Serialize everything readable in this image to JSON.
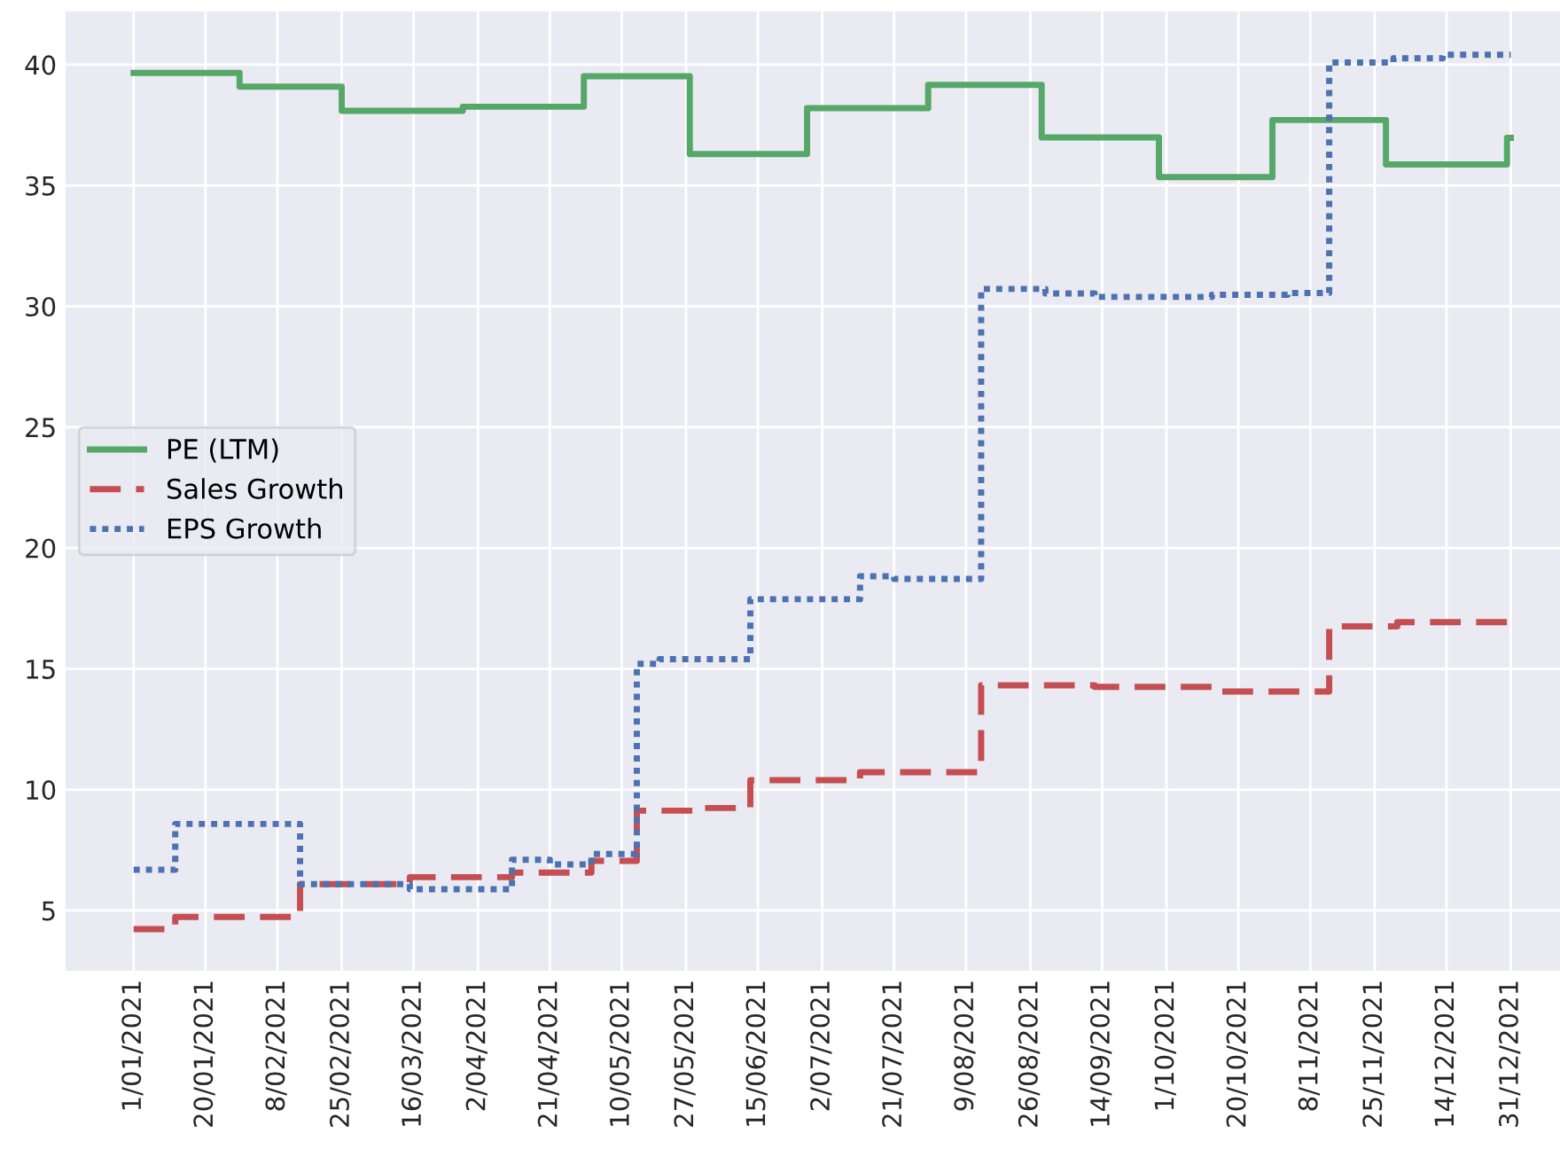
{
  "chart_data": {
    "type": "step",
    "xlim": [
      "2020-12-14",
      "2022-01-13"
    ],
    "ylim": [
      2.5,
      42.2
    ],
    "xticks": [
      {
        "value": "2021-01-01",
        "label": "1/01/2021"
      },
      {
        "value": "2021-01-20",
        "label": "20/01/2021"
      },
      {
        "value": "2021-02-08",
        "label": "8/02/2021"
      },
      {
        "value": "2021-02-25",
        "label": "25/02/2021"
      },
      {
        "value": "2021-03-16",
        "label": "16/03/2021"
      },
      {
        "value": "2021-04-02",
        "label": "2/04/2021"
      },
      {
        "value": "2021-04-21",
        "label": "21/04/2021"
      },
      {
        "value": "2021-05-10",
        "label": "10/05/2021"
      },
      {
        "value": "2021-05-27",
        "label": "27/05/2021"
      },
      {
        "value": "2021-06-15",
        "label": "15/06/2021"
      },
      {
        "value": "2021-07-02",
        "label": "2/07/2021"
      },
      {
        "value": "2021-07-21",
        "label": "21/07/2021"
      },
      {
        "value": "2021-08-09",
        "label": "9/08/2021"
      },
      {
        "value": "2021-08-26",
        "label": "26/08/2021"
      },
      {
        "value": "2021-09-14",
        "label": "14/09/2021"
      },
      {
        "value": "2021-10-01",
        "label": "1/10/2021"
      },
      {
        "value": "2021-10-20",
        "label": "20/10/2021"
      },
      {
        "value": "2021-11-08",
        "label": "8/11/2021"
      },
      {
        "value": "2021-11-25",
        "label": "25/11/2021"
      },
      {
        "value": "2021-12-14",
        "label": "14/12/2021"
      },
      {
        "value": "2021-12-31",
        "label": "31/12/2021"
      }
    ],
    "yticks": [
      5,
      10,
      15,
      20,
      25,
      30,
      35,
      40
    ],
    "grid": true,
    "legend": "center left",
    "series": [
      {
        "name": "PE (LTM)",
        "color": "#55a868",
        "line_style": "solid",
        "x": [
          "2021-01-01",
          "2021-01-29",
          "2021-02-25",
          "2021-03-29",
          "2021-04-30",
          "2021-05-28",
          "2021-06-28",
          "2021-07-30",
          "2021-08-29",
          "2021-09-29",
          "2021-10-29",
          "2021-11-28",
          "2021-12-30",
          "2021-12-31"
        ],
        "values": [
          39.66,
          39.09,
          38.09,
          38.26,
          39.52,
          36.3,
          38.2,
          39.16,
          36.99,
          35.35,
          37.71,
          35.87,
          36.97,
          36.97
        ]
      },
      {
        "name": "Sales Growth",
        "color": "#c44e52",
        "line_style": "dashed",
        "x": [
          "2021-01-01",
          "2021-01-12",
          "2021-02-14",
          "2021-03-15",
          "2021-04-11",
          "2021-05-02",
          "2021-05-14",
          "2021-05-31",
          "2021-06-13",
          "2021-07-12",
          "2021-08-13",
          "2021-09-12",
          "2021-10-13",
          "2021-11-13",
          "2021-12-01",
          "2021-12-31"
        ],
        "values": [
          4.23,
          4.73,
          6.09,
          6.38,
          6.57,
          7.05,
          9.13,
          9.24,
          10.39,
          10.72,
          14.32,
          14.25,
          14.06,
          16.76,
          16.93,
          16.93
        ]
      },
      {
        "name": "EPS Growth",
        "color": "#4c72b0",
        "line_style": "dotted",
        "x": [
          "2021-01-01",
          "2021-01-12",
          "2021-02-14",
          "2021-03-15",
          "2021-04-11",
          "2021-04-21",
          "2021-05-02",
          "2021-05-14",
          "2021-05-20",
          "2021-06-13",
          "2021-07-12",
          "2021-07-21",
          "2021-08-13",
          "2021-08-30",
          "2021-09-12",
          "2021-10-13",
          "2021-11-02",
          "2021-11-13",
          "2021-11-30",
          "2021-12-13",
          "2021-12-31"
        ],
        "values": [
          6.69,
          8.58,
          6.09,
          5.88,
          7.1,
          6.91,
          7.34,
          15.21,
          15.4,
          17.88,
          18.83,
          18.72,
          30.72,
          30.53,
          30.39,
          30.48,
          30.55,
          40.09,
          40.26,
          40.41,
          40.41
        ]
      }
    ]
  }
}
